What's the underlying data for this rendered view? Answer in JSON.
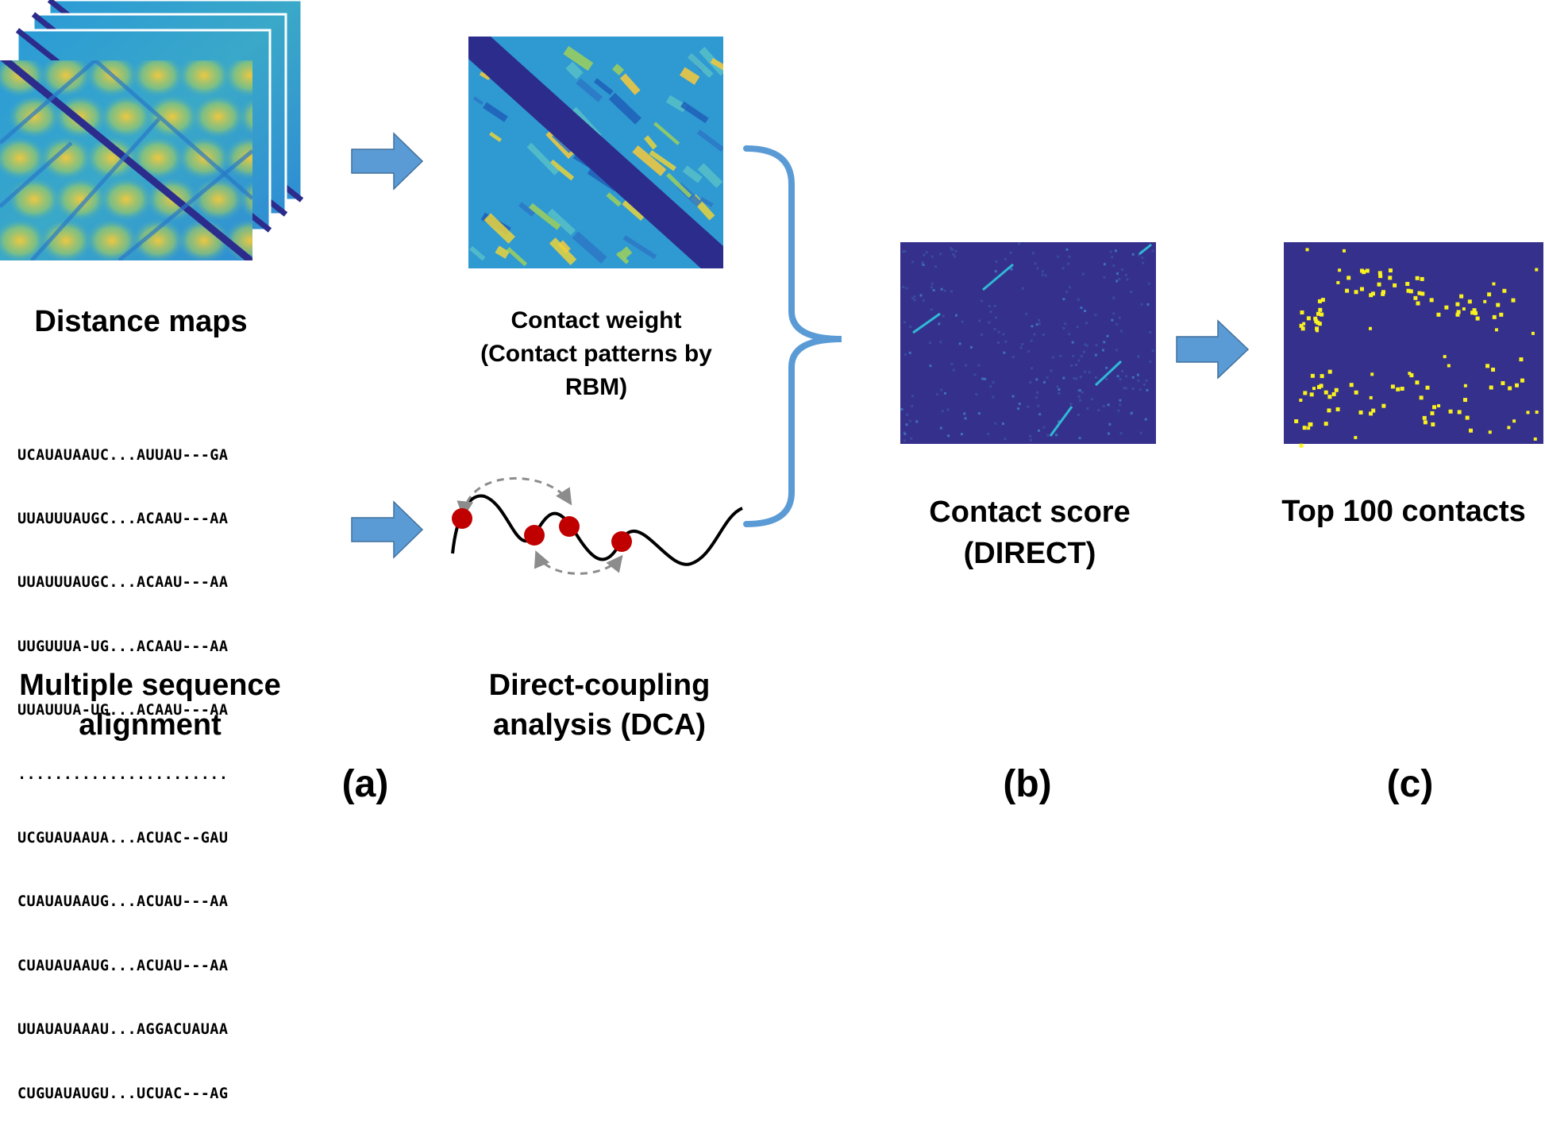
{
  "labels": {
    "distance_maps": "Distance maps",
    "contact_weight": "Contact weight\n(Contact patterns by\nRBM)",
    "msa": "Multiple sequence\nalignment",
    "dca": "Direct-coupling\nanalysis (DCA)",
    "contact_score": "Contact score\n(DIRECT)",
    "top_contacts": "Top 100 contacts",
    "panel_a": "(a)",
    "panel_b": "(b)",
    "panel_c": "(c)"
  },
  "msa_rows": [
    "UCAUAUAAUC...AUUAU---GA",
    "UUAUUUAUGC...ACAAU---AA",
    "UUAUUUAUGC...ACAAU---AA",
    "UUGUUUA-UG...ACAAU---AA",
    "UUAUUUA-UG...ACAAU---AA",
    ".......................",
    "UCGUAUAAUA...ACUAC--GAU",
    "CUAUAUAAUG...ACUAU---AA",
    "CUAUAUAAUG...ACUAU---AA",
    "UUAUAUAAAU...AGGACUAUAA",
    "CUGUAUAUGU...UCUAC---AG"
  ],
  "colors": {
    "arrow": "#5b9bd5",
    "arrow_stroke": "#41719c",
    "brace": "#5b9bd5",
    "heatmap_dark": "#2c2c8c",
    "heatmap_mid": "#2c8fd0",
    "heatmap_light": "#f7c93a",
    "contact_bg": "#35308b",
    "contact_dot": "#f9f21f",
    "dca_node": "#c00000",
    "dca_dash": "#8c8c8c"
  },
  "icons": [
    "right-arrow-icon",
    "curly-brace-icon"
  ]
}
